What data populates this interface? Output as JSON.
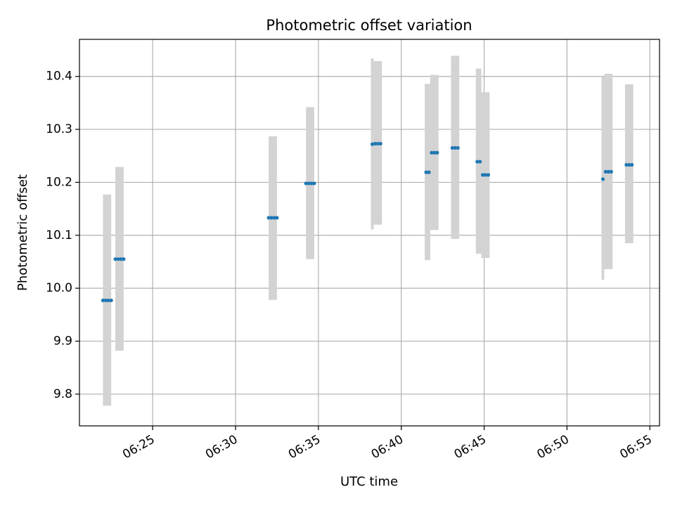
{
  "chart_data": {
    "type": "scatter",
    "title": "Photometric offset variation",
    "xlabel": "UTC time",
    "ylabel": "Photometric offset",
    "xlim": [
      "06:20:35",
      "06:55:35"
    ],
    "ylim": [
      9.74,
      10.47
    ],
    "x_ticks": [
      "06:25",
      "06:30",
      "06:35",
      "06:40",
      "06:45",
      "06:50",
      "06:55"
    ],
    "y_ticks": [
      "9.8",
      "9.9",
      "10.0",
      "10.1",
      "10.2",
      "10.3",
      "10.4"
    ],
    "grid": true,
    "colors": {
      "points": "#1f77b4",
      "bands": "#d3d3d3",
      "grid": "#b0b0b0"
    },
    "error_bands": [
      {
        "start": "06:22:00",
        "end": "06:22:30",
        "low": 9.778,
        "high": 10.177
      },
      {
        "start": "06:22:45",
        "end": "06:23:15",
        "low": 9.882,
        "high": 10.229
      },
      {
        "start": "06:32:00",
        "end": "06:32:30",
        "low": 9.978,
        "high": 10.287
      },
      {
        "start": "06:34:15",
        "end": "06:34:45",
        "low": 10.055,
        "high": 10.342
      },
      {
        "start": "06:38:10",
        "end": "06:38:20",
        "low": 10.111,
        "high": 10.434
      },
      {
        "start": "06:38:20",
        "end": "06:38:50",
        "low": 10.12,
        "high": 10.429
      },
      {
        "start": "06:41:25",
        "end": "06:41:45",
        "low": 10.053,
        "high": 10.386
      },
      {
        "start": "06:41:45",
        "end": "06:42:15",
        "low": 10.11,
        "high": 10.403
      },
      {
        "start": "06:43:00",
        "end": "06:43:30",
        "low": 10.093,
        "high": 10.439
      },
      {
        "start": "06:44:30",
        "end": "06:44:50",
        "low": 10.065,
        "high": 10.415
      },
      {
        "start": "06:44:50",
        "end": "06:45:20",
        "low": 10.057,
        "high": 10.37
      },
      {
        "start": "06:52:05",
        "end": "06:52:15",
        "low": 10.016,
        "high": 10.399
      },
      {
        "start": "06:52:15",
        "end": "06:52:45",
        "low": 10.036,
        "high": 10.405
      },
      {
        "start": "06:53:30",
        "end": "06:54:00",
        "low": 10.085,
        "high": 10.385
      }
    ],
    "points": [
      {
        "x": "06:22:00",
        "y": 9.977
      },
      {
        "x": "06:22:10",
        "y": 9.977
      },
      {
        "x": "06:22:20",
        "y": 9.977
      },
      {
        "x": "06:22:30",
        "y": 9.977
      },
      {
        "x": "06:22:45",
        "y": 10.055
      },
      {
        "x": "06:22:55",
        "y": 10.055
      },
      {
        "x": "06:23:05",
        "y": 10.055
      },
      {
        "x": "06:23:15",
        "y": 10.055
      },
      {
        "x": "06:32:00",
        "y": 10.133
      },
      {
        "x": "06:32:10",
        "y": 10.133
      },
      {
        "x": "06:32:20",
        "y": 10.133
      },
      {
        "x": "06:32:30",
        "y": 10.133
      },
      {
        "x": "06:34:15",
        "y": 10.198
      },
      {
        "x": "06:34:25",
        "y": 10.198
      },
      {
        "x": "06:34:35",
        "y": 10.198
      },
      {
        "x": "06:34:45",
        "y": 10.198
      },
      {
        "x": "06:38:15",
        "y": 10.272
      },
      {
        "x": "06:38:25",
        "y": 10.273
      },
      {
        "x": "06:38:35",
        "y": 10.273
      },
      {
        "x": "06:38:45",
        "y": 10.273
      },
      {
        "x": "06:41:30",
        "y": 10.219
      },
      {
        "x": "06:41:40",
        "y": 10.219
      },
      {
        "x": "06:41:50",
        "y": 10.256
      },
      {
        "x": "06:42:00",
        "y": 10.256
      },
      {
        "x": "06:42:10",
        "y": 10.256
      },
      {
        "x": "06:43:05",
        "y": 10.265
      },
      {
        "x": "06:43:15",
        "y": 10.265
      },
      {
        "x": "06:43:25",
        "y": 10.265
      },
      {
        "x": "06:44:35",
        "y": 10.239
      },
      {
        "x": "06:44:45",
        "y": 10.239
      },
      {
        "x": "06:44:55",
        "y": 10.214
      },
      {
        "x": "06:45:05",
        "y": 10.214
      },
      {
        "x": "06:45:15",
        "y": 10.214
      },
      {
        "x": "06:52:10",
        "y": 10.206
      },
      {
        "x": "06:52:20",
        "y": 10.22
      },
      {
        "x": "06:52:30",
        "y": 10.22
      },
      {
        "x": "06:52:40",
        "y": 10.22
      },
      {
        "x": "06:53:35",
        "y": 10.233
      },
      {
        "x": "06:53:45",
        "y": 10.233
      },
      {
        "x": "06:53:55",
        "y": 10.233
      }
    ]
  }
}
